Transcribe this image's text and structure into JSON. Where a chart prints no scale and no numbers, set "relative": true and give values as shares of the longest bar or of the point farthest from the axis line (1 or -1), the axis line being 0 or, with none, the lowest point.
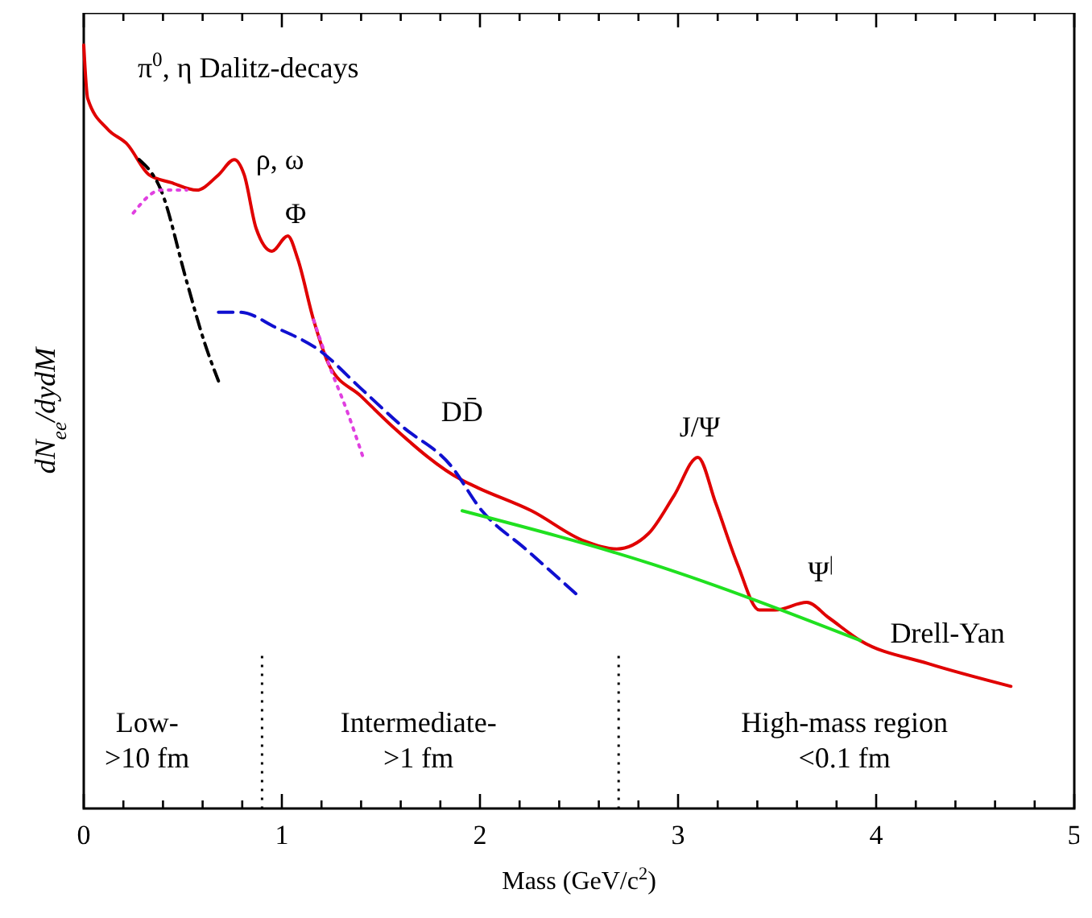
{
  "chart_data": {
    "type": "line",
    "relative": true,
    "xlabel": "Mass (GeV/c$^{2}$)",
    "ylabel": "dN$_{ee}$/dydM",
    "xlim": [
      0,
      5
    ],
    "xticks": [
      0,
      {
        "value": 0.2,
        "label": null
      },
      {
        "value": 0.4,
        "label": null
      },
      {
        "value": 0.6,
        "label": null
      },
      {
        "value": 0.8,
        "label": null
      },
      1,
      {
        "value": 1.2,
        "label": null
      },
      {
        "value": 1.4,
        "label": null
      },
      {
        "value": 1.6,
        "label": null
      },
      {
        "value": 1.8,
        "label": null
      },
      2,
      {
        "value": 2.2,
        "label": null
      },
      {
        "value": 2.4,
        "label": null
      },
      {
        "value": 2.6,
        "label": null
      },
      {
        "value": 2.8,
        "label": null
      },
      3,
      {
        "value": 3.2,
        "label": null
      },
      {
        "value": 3.4,
        "label": null
      },
      {
        "value": 3.6,
        "label": null
      },
      {
        "value": 3.8,
        "label": null
      },
      4,
      {
        "value": 4.2,
        "label": null
      },
      {
        "value": 4.4,
        "label": null
      },
      {
        "value": 4.6,
        "label": null
      },
      {
        "value": 4.8,
        "label": null
      },
      5
    ],
    "grid": false,
    "series": [
      {
        "color": "#e00000",
        "line_style": "solid",
        "x": [
          0,
          0.02,
          0.12,
          0.22,
          0.33,
          0.44,
          0.57,
          0.68,
          0.76,
          0.81,
          0.87,
          0.95,
          1.03,
          1.08,
          1.16,
          1.24,
          1.4,
          1.56,
          1.91,
          1.99,
          2.26,
          2.53,
          2.69,
          2.85,
          2.98,
          3.1,
          3.19,
          3.3,
          3.41,
          3.49,
          3.65,
          3.76,
          3.92,
          4.26,
          4.68
        ],
        "values": [
          1.0,
          0.93,
          0.89,
          0.87,
          0.83,
          0.82,
          0.81,
          0.83,
          0.85,
          0.83,
          0.76,
          0.73,
          0.75,
          0.72,
          0.64,
          0.58,
          0.54,
          0.5,
          0.43,
          0.42,
          0.39,
          0.35,
          0.34,
          0.36,
          0.41,
          0.46,
          0.4,
          0.32,
          0.26,
          0.26,
          0.27,
          0.25,
          0.22,
          0.19,
          0.16
        ]
      },
      {
        "color": "#000000",
        "line_style": "dashdot",
        "x": [
          0.28,
          0.39,
          0.52,
          0.61,
          0.68
        ],
        "values": [
          0.85,
          0.81,
          0.69,
          0.61,
          0.56
        ]
      },
      {
        "color": "#e040e0",
        "line_style": "dotted",
        "x": [
          0.25,
          0.39,
          0.52
        ],
        "values": [
          0.78,
          0.81,
          0.81
        ]
      },
      {
        "color": "#e040e0",
        "line_style": "dotted",
        "x": [
          1.16,
          1.24,
          1.33,
          1.41
        ],
        "values": [
          0.64,
          0.58,
          0.52,
          0.46
        ]
      },
      {
        "color": "#1010d0",
        "line_style": "dashed",
        "x": [
          0.68,
          0.79,
          0.97,
          1.19,
          1.4,
          1.61,
          1.85,
          2.01,
          2.23,
          2.49
        ],
        "values": [
          0.65,
          0.65,
          0.63,
          0.6,
          0.55,
          0.5,
          0.45,
          0.39,
          0.34,
          0.28
        ]
      },
      {
        "color": "#20e020",
        "line_style": "solid",
        "x": [
          1.91,
          2.87,
          3.92
        ],
        "values": [
          0.39,
          0.32,
          0.22
        ]
      }
    ],
    "ref_lines": [
      {
        "axis": "x",
        "value": 0.9,
        "color": "#000000",
        "line_style": "dotted"
      },
      {
        "axis": "x",
        "value": 2.7,
        "color": "#000000",
        "line_style": "dotted"
      }
    ],
    "annotations": [
      "π$^{0}$, η Dalitz-decays",
      "ρ, ω",
      "Φ",
      "DD̄",
      "J/Ψ",
      "Ψ$^{|}$",
      "Drell-Yan",
      "Low-\n>10 fm",
      "Intermediate-\n>1 fm",
      "High-mass region\n<0.1 fm"
    ]
  }
}
